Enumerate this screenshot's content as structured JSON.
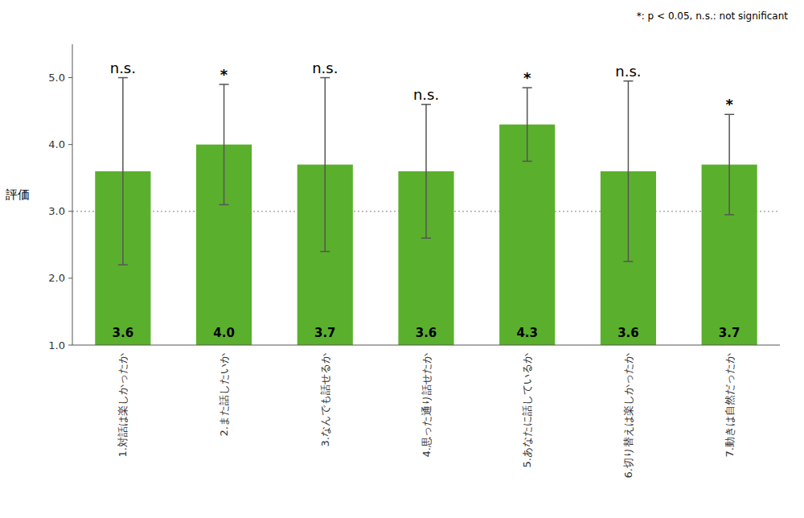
{
  "chart_data": {
    "type": "bar",
    "y_label": "評価",
    "categories": [
      "1.対話は楽しかったか",
      "2.また話したいか",
      "3.なんでも話せるか",
      "4.思った通り話せたか",
      "5.あなたに話しているか",
      "6.切り替えは楽しかったか",
      "7.動きは自然だったか"
    ],
    "values": [
      3.6,
      4.0,
      3.7,
      3.6,
      4.3,
      3.6,
      3.7
    ],
    "value_labels": [
      "3.6",
      "4.0",
      "3.7",
      "3.6",
      "4.3",
      "3.6",
      "3.7"
    ],
    "data_labels": true,
    "errors": [
      1.4,
      0.9,
      1.3,
      1.0,
      0.55,
      1.35,
      0.75
    ],
    "significance": [
      "n.s.",
      "*",
      "n.s.",
      "n.s.",
      "*",
      "n.s.",
      "*"
    ],
    "color": "#5ab02c",
    "ylim": [
      1.0,
      5.5
    ],
    "yticks": [
      {
        "value": 1.0,
        "label": "1.0"
      },
      {
        "value": 2.0,
        "label": "2.0"
      },
      {
        "value": 3.0,
        "label": "3.0"
      },
      {
        "value": 4.0,
        "label": "4.0"
      },
      {
        "value": 5.0,
        "label": "5.0"
      }
    ],
    "reference_line": {
      "value": 3.0,
      "color": "#aaaaaa"
    },
    "annotation": "*: p < 0.05,  n.s.: not significant",
    "grid": false
  }
}
